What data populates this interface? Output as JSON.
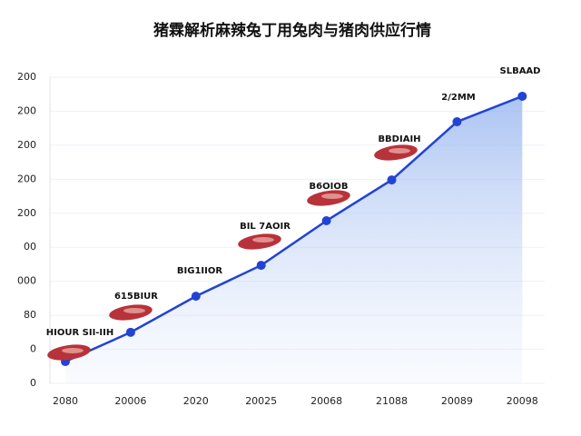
{
  "chart_data": {
    "type": "line",
    "title": "猪霖解析麻辣兔丁用兔肉与猪肉供应行情",
    "categories": [
      "2080",
      "20006",
      "2020",
      "20025",
      "20068",
      "21088",
      "20089",
      "20098"
    ],
    "series": [
      {
        "name": "line",
        "color": "#2343d4",
        "values": [
          0.64,
          1.5,
          2.56,
          3.47,
          4.78,
          5.98,
          7.69,
          8.44
        ]
      }
    ],
    "annotations": [
      "HIOUR SII-IIH",
      "615BIUR",
      "BIG1IIOR",
      "BIL 7AOIR",
      "B6OIOB",
      "BBDIAIH",
      "2/2MM",
      "SLBAAD"
    ],
    "ylim": [
      0,
      9
    ],
    "yticks": [
      {
        "value": 0,
        "label": "0"
      },
      {
        "value": 1,
        "label": "0"
      },
      {
        "value": 2,
        "label": "80"
      },
      {
        "value": 3,
        "label": "000"
      },
      {
        "value": 4,
        "label": "00"
      },
      {
        "value": 5,
        "label": "200"
      },
      {
        "value": 6,
        "label": "200"
      },
      {
        "value": 7,
        "label": "200"
      },
      {
        "value": 8,
        "label": "200"
      },
      {
        "value": 9,
        "label": "200"
      }
    ],
    "grid": true
  }
}
